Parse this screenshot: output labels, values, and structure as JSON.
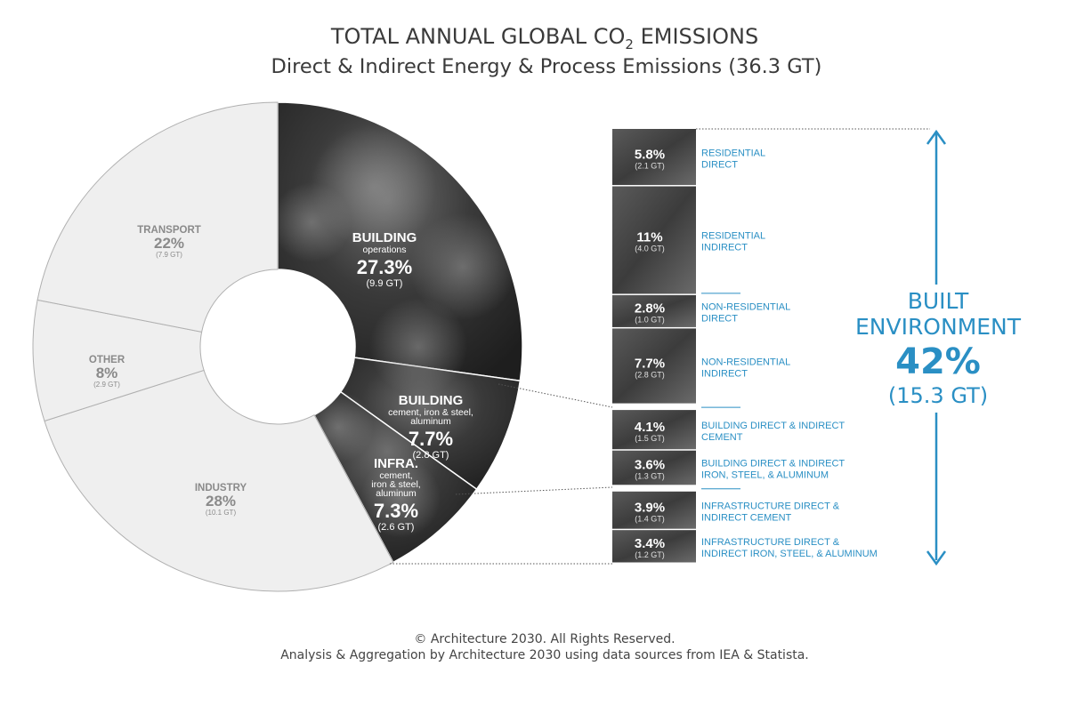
{
  "header": {
    "title_pre": "TOTAL ANNUAL GLOBAL CO",
    "title_sub": "2",
    "title_post": " EMISSIONS",
    "subtitle": "Direct & Indirect Energy & Process Emissions (36.3 GT)"
  },
  "footer": {
    "line1": "© Architecture 2030. All Rights Reserved.",
    "line2": "Analysis & Aggregation by Architecture 2030 using data sources from IEA & Statista."
  },
  "colors": {
    "light_segment": "#efefef",
    "dark_segment": "#4a4a4a",
    "accent_blue": "#2a8fc4",
    "text_gray": "#8a8a8a"
  },
  "chart_data": [
    {
      "type": "pie",
      "variant": "donut",
      "total_gt": 36.3,
      "slices": [
        {
          "id": "building-operations",
          "name": "BUILDING",
          "sub": "operations",
          "percent": 27.3,
          "percent_label": "27.3%",
          "value_label": "(9.9 GT)",
          "gt": 9.9,
          "style": "dark"
        },
        {
          "id": "building-materials",
          "name": "BUILDING",
          "sub": "cement, iron & steel, aluminum",
          "percent": 7.7,
          "percent_label": "7.7%",
          "value_label": "(2.8 GT)",
          "gt": 2.8,
          "style": "dark"
        },
        {
          "id": "infrastructure",
          "name": "INFRA.",
          "sub": "cement, iron & steel, aluminum",
          "percent": 7.3,
          "percent_label": "7.3%",
          "value_label": "(2.6 GT)",
          "gt": 2.6,
          "style": "dark"
        },
        {
          "id": "industry",
          "name": "INDUSTRY",
          "percent": 28,
          "percent_label": "28%",
          "value_label": "(10.1 GT)",
          "gt": 10.1,
          "style": "light"
        },
        {
          "id": "other",
          "name": "OTHER",
          "percent": 8,
          "percent_label": "8%",
          "value_label": "(2.9 GT)",
          "gt": 2.9,
          "style": "light"
        },
        {
          "id": "transport",
          "name": "TRANSPORT",
          "percent": 22,
          "percent_label": "22%",
          "value_label": "(7.9 GT)",
          "gt": 7.9,
          "style": "light"
        }
      ]
    },
    {
      "type": "bar",
      "variant": "stacked-breakdown",
      "rows": [
        {
          "id": "residential-direct",
          "percent": 5.8,
          "percent_label": "5.8%",
          "value_label": "(2.1 GT)",
          "gt": 2.1,
          "label1": "RESIDENTIAL",
          "label2": "DIRECT"
        },
        {
          "id": "residential-indirect",
          "percent": 11,
          "percent_label": "11%",
          "value_label": "(4.0 GT)",
          "gt": 4.0,
          "label1": "RESIDENTIAL",
          "label2": "INDIRECT"
        },
        {
          "id": "nonres-direct",
          "percent": 2.8,
          "percent_label": "2.8%",
          "value_label": "(1.0 GT)",
          "gt": 1.0,
          "label1": "NON-RESIDENTIAL",
          "label2": "DIRECT"
        },
        {
          "id": "nonres-indirect",
          "percent": 7.7,
          "percent_label": "7.7%",
          "value_label": "(2.8 GT)",
          "gt": 2.8,
          "label1": "NON-RESIDENTIAL",
          "label2": "INDIRECT"
        },
        {
          "id": "building-cement",
          "percent": 4.1,
          "percent_label": "4.1%",
          "value_label": "(1.5 GT)",
          "gt": 1.5,
          "label1": "BUILDING DIRECT & INDIRECT",
          "label2": "CEMENT"
        },
        {
          "id": "building-iron",
          "percent": 3.6,
          "percent_label": "3.6%",
          "value_label": "(1.3 GT)",
          "gt": 1.3,
          "label1": "BUILDING DIRECT & INDIRECT",
          "label2": "IRON, STEEL, & ALUMINUM"
        },
        {
          "id": "infra-cement",
          "percent": 3.9,
          "percent_label": "3.9%",
          "value_label": "(1.4 GT)",
          "gt": 1.4,
          "label1": "INFRASTRUCTURE DIRECT &",
          "label2": "INDIRECT CEMENT"
        },
        {
          "id": "infra-iron",
          "percent": 3.4,
          "percent_label": "3.4%",
          "value_label": "(1.2 GT)",
          "gt": 1.2,
          "label1": "INFRASTRUCTURE DIRECT &",
          "label2": "INDIRECT IRON, STEEL, & ALUMINUM"
        }
      ]
    }
  ],
  "built_environment": {
    "line1": "BUILT",
    "line2": "ENVIRONMENT",
    "percent_label": "42%",
    "value_label": "(15.3 GT)"
  }
}
